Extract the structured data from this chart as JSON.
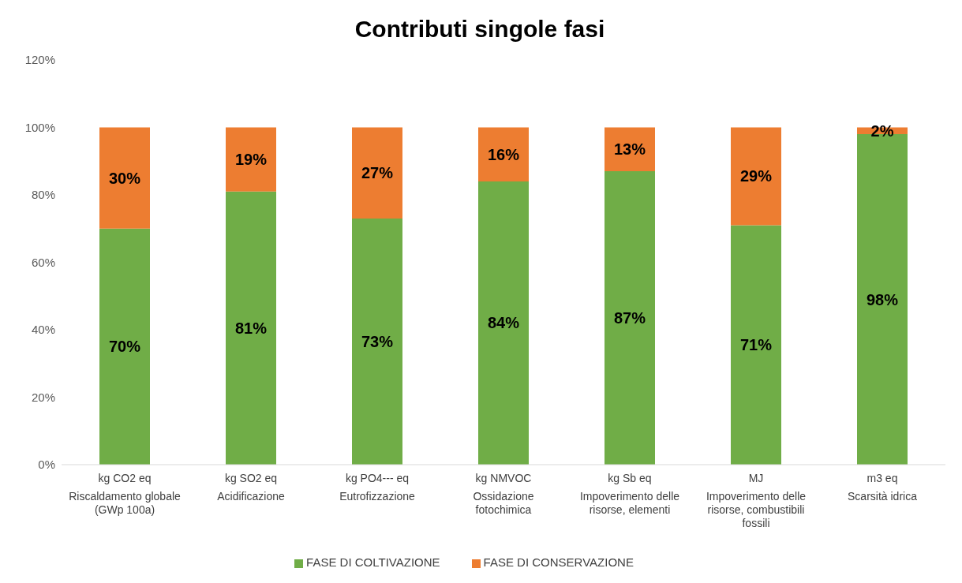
{
  "chart_data": {
    "type": "bar",
    "title": "Contributi singole fasi",
    "stacked": true,
    "categories": [
      "kg CO2 eq\nRiscaldamento globale (GWp 100a)",
      "kg SO2 eq\nAcidificazione",
      "kg PO4--- eq\nEutrofizzazione",
      "kg NMVOC\nOssidazione fotochimica",
      "kg Sb eq\nImpoverimento delle risorse, elementi",
      "MJ\nImpoverimento delle risorse, combustibili fossili",
      "m3 eq\nScarsità idrica"
    ],
    "series": [
      {
        "name": "FASE DI COLTIVAZIONE",
        "color": "#70ad47",
        "values": [
          70,
          81,
          73,
          84,
          87,
          71,
          98
        ],
        "value_labels": [
          "70%",
          "81%",
          "73%",
          "84%",
          "87%",
          "71%",
          "98%"
        ]
      },
      {
        "name": "FASE DI CONSERVAZIONE",
        "color": "#ed7d31",
        "values": [
          30,
          19,
          27,
          16,
          13,
          29,
          2
        ],
        "value_labels": [
          "30%",
          "19%",
          "27%",
          "16%",
          "13%",
          "29%",
          "2%"
        ]
      }
    ],
    "ylim": [
      0,
      120
    ],
    "yticks": [
      {
        "value": 0,
        "label": "0%"
      },
      {
        "value": 20,
        "label": "20%"
      },
      {
        "value": 40,
        "label": "40%"
      },
      {
        "value": 60,
        "label": "60%"
      },
      {
        "value": 80,
        "label": "80%"
      },
      {
        "value": 100,
        "label": "100%"
      },
      {
        "value": 120,
        "label": "120%"
      }
    ],
    "legend": "bottom"
  }
}
